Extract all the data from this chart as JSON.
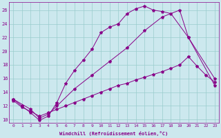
{
  "xlabel": "Windchill (Refroidissement éolien,°C)",
  "bg_color": "#cce8ee",
  "line_color": "#880088",
  "grid_color": "#99cccc",
  "xlim": [
    -0.5,
    23.5
  ],
  "ylim": [
    9.5,
    27.2
  ],
  "xticks": [
    0,
    1,
    2,
    3,
    4,
    5,
    6,
    7,
    8,
    9,
    10,
    11,
    12,
    13,
    14,
    15,
    16,
    17,
    18,
    19,
    20,
    21,
    22,
    23
  ],
  "yticks": [
    10,
    12,
    14,
    16,
    18,
    20,
    22,
    24,
    26
  ],
  "line1_x": [
    0,
    1,
    2,
    3,
    4,
    5,
    6,
    7,
    8,
    9,
    10,
    11,
    12,
    13,
    14,
    15,
    16,
    17,
    18,
    20,
    23
  ],
  "line1_y": [
    13.0,
    12.0,
    11.0,
    9.9,
    10.5,
    12.5,
    15.3,
    17.2,
    18.7,
    20.3,
    22.7,
    23.5,
    24.0,
    25.5,
    26.2,
    26.6,
    26.0,
    25.8,
    25.5,
    22.0,
    15.0
  ],
  "line2_x": [
    0,
    2,
    3,
    4,
    5,
    7,
    9,
    11,
    13,
    15,
    17,
    19,
    20,
    23
  ],
  "line2_y": [
    13.0,
    11.5,
    10.2,
    10.8,
    12.0,
    14.5,
    16.5,
    18.5,
    20.5,
    23.0,
    25.0,
    26.0,
    22.0,
    16.0
  ],
  "line3_x": [
    0,
    1,
    2,
    3,
    4,
    5,
    6,
    7,
    8,
    9,
    10,
    11,
    12,
    13,
    14,
    15,
    16,
    17,
    18,
    19,
    20,
    21,
    22,
    23
  ],
  "line3_y": [
    12.8,
    11.8,
    11.2,
    10.5,
    11.0,
    11.5,
    12.0,
    12.5,
    13.0,
    13.5,
    14.0,
    14.5,
    15.0,
    15.3,
    15.8,
    16.2,
    16.6,
    17.0,
    17.5,
    18.0,
    19.2,
    17.8,
    16.5,
    15.5
  ]
}
